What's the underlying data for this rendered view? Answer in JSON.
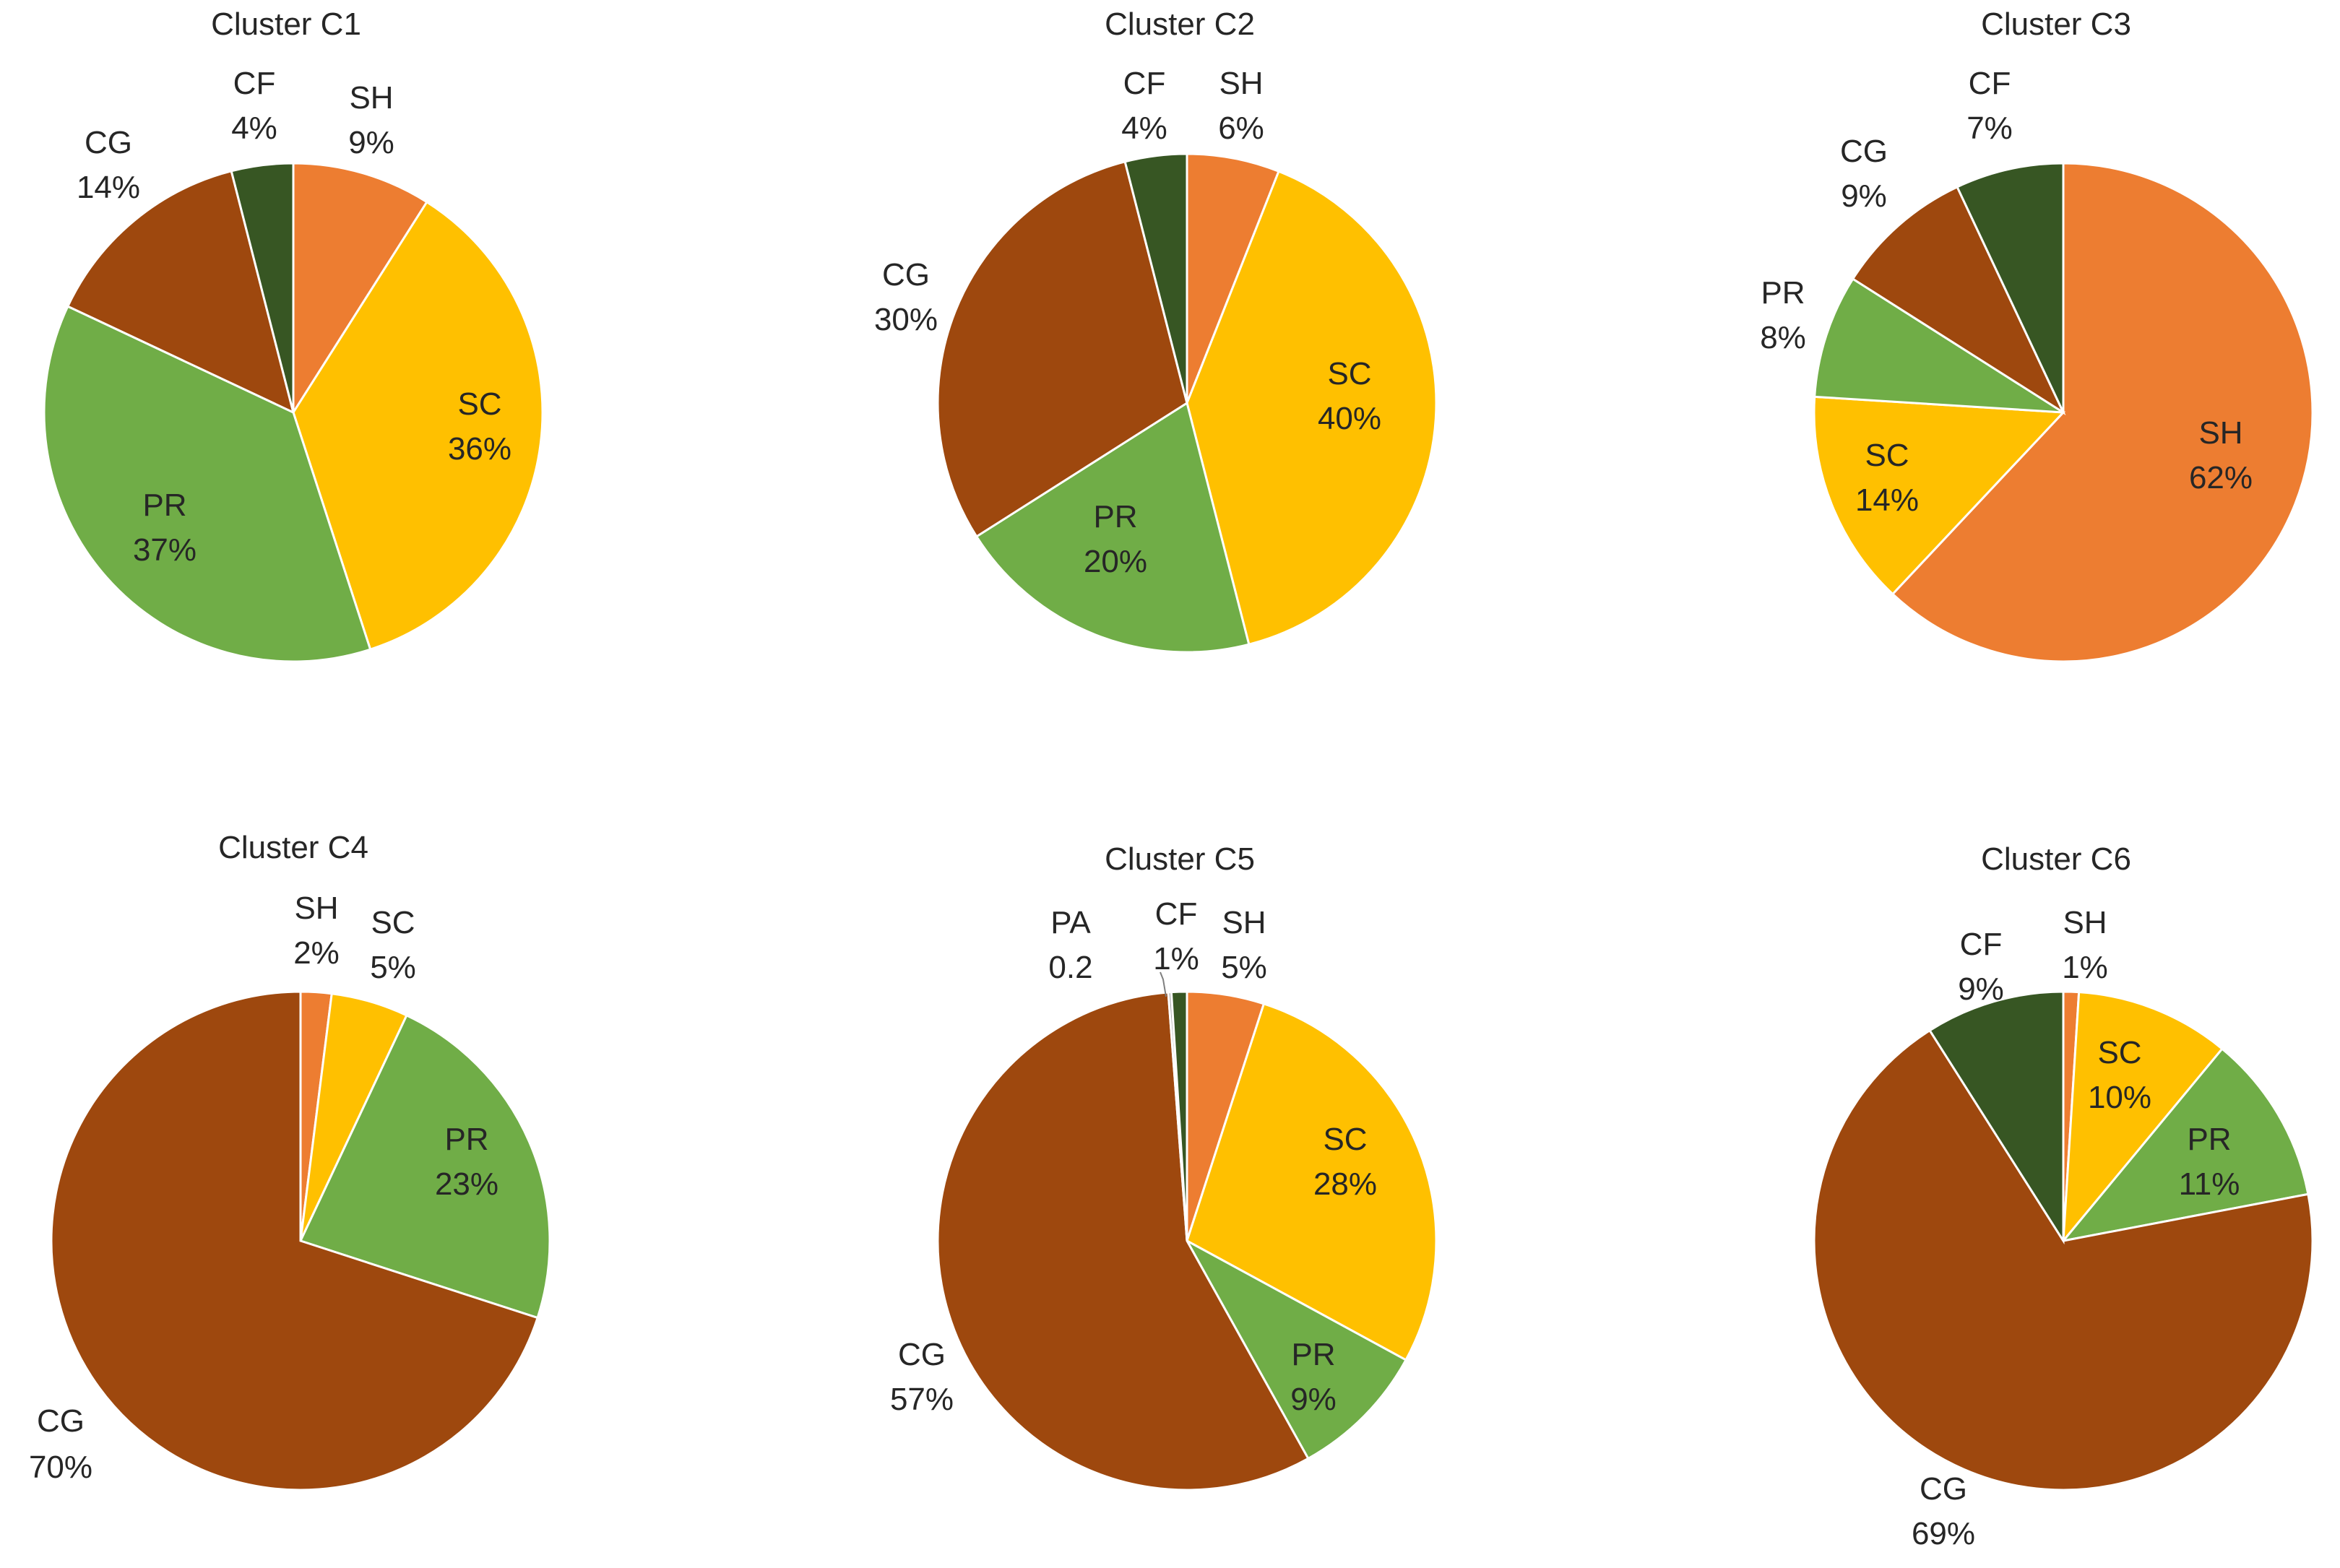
{
  "chart_data": [
    {
      "type": "pie",
      "title": "Cluster C1",
      "slices": [
        {
          "name": "SH",
          "value": 9,
          "label": "9%",
          "color": "#ED7D31"
        },
        {
          "name": "SC",
          "value": 36,
          "label": "36%",
          "color": "#FFC000"
        },
        {
          "name": "PR",
          "value": 37,
          "label": "37%",
          "color": "#70AD47"
        },
        {
          "name": "CG",
          "value": 14,
          "label": "14%",
          "color": "#9E480E"
        },
        {
          "name": "CF",
          "value": 4,
          "label": "4%",
          "color": "#375623"
        }
      ]
    },
    {
      "type": "pie",
      "title": "Cluster C2",
      "slices": [
        {
          "name": "SH",
          "value": 6,
          "label": "6%",
          "color": "#ED7D31"
        },
        {
          "name": "SC",
          "value": 40,
          "label": "40%",
          "color": "#FFC000"
        },
        {
          "name": "PR",
          "value": 20,
          "label": "20%",
          "color": "#70AD47"
        },
        {
          "name": "CG",
          "value": 30,
          "label": "30%",
          "color": "#9E480E"
        },
        {
          "name": "CF",
          "value": 4,
          "label": "4%",
          "color": "#375623"
        }
      ]
    },
    {
      "type": "pie",
      "title": "Cluster C3",
      "slices": [
        {
          "name": "SH",
          "value": 62,
          "label": "62%",
          "color": "#ED7D31"
        },
        {
          "name": "SC",
          "value": 14,
          "label": "14%",
          "color": "#FFC000"
        },
        {
          "name": "PR",
          "value": 8,
          "label": "8%",
          "color": "#70AD47"
        },
        {
          "name": "CG",
          "value": 9,
          "label": "9%",
          "color": "#9E480E"
        },
        {
          "name": "CF",
          "value": 7,
          "label": "7%",
          "color": "#375623"
        }
      ]
    },
    {
      "type": "pie",
      "title": "Cluster C4",
      "slices": [
        {
          "name": "SH",
          "value": 2,
          "label": "2%",
          "color": "#ED7D31"
        },
        {
          "name": "SC",
          "value": 5,
          "label": "5%",
          "color": "#FFC000"
        },
        {
          "name": "PR",
          "value": 23,
          "label": "23%",
          "color": "#70AD47"
        },
        {
          "name": "CG",
          "value": 70,
          "label": "70%",
          "color": "#9E480E"
        }
      ]
    },
    {
      "type": "pie",
      "title": "Cluster C5",
      "slices": [
        {
          "name": "SH",
          "value": 5,
          "label": "5%",
          "color": "#ED7D31"
        },
        {
          "name": "SC",
          "value": 28,
          "label": "28%",
          "color": "#FFC000"
        },
        {
          "name": "PR",
          "value": 9,
          "label": "9%",
          "color": "#70AD47"
        },
        {
          "name": "CG",
          "value": 57,
          "label": "57%",
          "color": "#9E480E"
        },
        {
          "name": "PA",
          "value": 0.2,
          "label": "0.2",
          "color": "#A5A5A5"
        },
        {
          "name": "CF",
          "value": 1,
          "label": "1%",
          "color": "#375623"
        }
      ]
    },
    {
      "type": "pie",
      "title": "Cluster C6",
      "slices": [
        {
          "name": "SH",
          "value": 1,
          "label": "1%",
          "color": "#ED7D31"
        },
        {
          "name": "SC",
          "value": 10,
          "label": "10%",
          "color": "#FFC000"
        },
        {
          "name": "PR",
          "value": 11,
          "label": "11%",
          "color": "#70AD47"
        },
        {
          "name": "CG",
          "value": 69,
          "label": "69%",
          "color": "#9E480E"
        },
        {
          "name": "CF",
          "value": 9,
          "label": "9%",
          "color": "#375623"
        }
      ]
    }
  ]
}
